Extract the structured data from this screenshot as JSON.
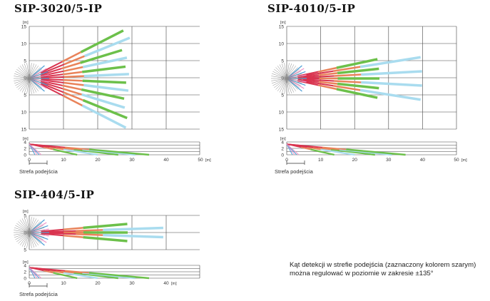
{
  "colors": {
    "grid": "#444444",
    "green": "#6cc04a",
    "light_blue": "#a9dcef",
    "orange": "#e9835a",
    "red": "#d9344f",
    "pink": "#ef93c8",
    "blue": "#4e9fd6",
    "gray_zone": "#8a8a8a"
  },
  "unit_label": "[m]",
  "approach_zone_label": "Strefa podejścia",
  "caption": {
    "line1": "Kąt detekcji w strefie podejścia (zaznaczony kolorem szarym)",
    "line2": "można regulować w poziomie w zakresie ±135°"
  },
  "diagrams": [
    {
      "model": "SIP-3020/5-IP",
      "top_view": {
        "y_ticks": [
          "15",
          "10",
          "5",
          "0",
          "5",
          "10",
          "15"
        ]
      },
      "side_view": {
        "y_ticks": [
          "4",
          "2",
          "0"
        ],
        "x_ticks": [
          "0",
          "10",
          "20",
          "30",
          "40",
          "50"
        ]
      }
    },
    {
      "model": "SIP-4010/5-IP",
      "top_view": {
        "y_ticks": [
          "15",
          "10",
          "5",
          "0",
          "5",
          "10",
          "15"
        ]
      },
      "side_view": {
        "y_ticks": [
          "4",
          "2",
          "0"
        ],
        "x_ticks": [
          "0",
          "10",
          "20",
          "30",
          "40",
          "50"
        ]
      }
    },
    {
      "model": "SIP-404/5-IP",
      "top_view": {
        "y_ticks": [
          "5",
          "0",
          "5"
        ]
      },
      "side_view": {
        "y_ticks": [
          "4",
          "2",
          "0"
        ],
        "x_ticks": [
          "0",
          "10",
          "20",
          "30",
          "40"
        ]
      }
    }
  ]
}
